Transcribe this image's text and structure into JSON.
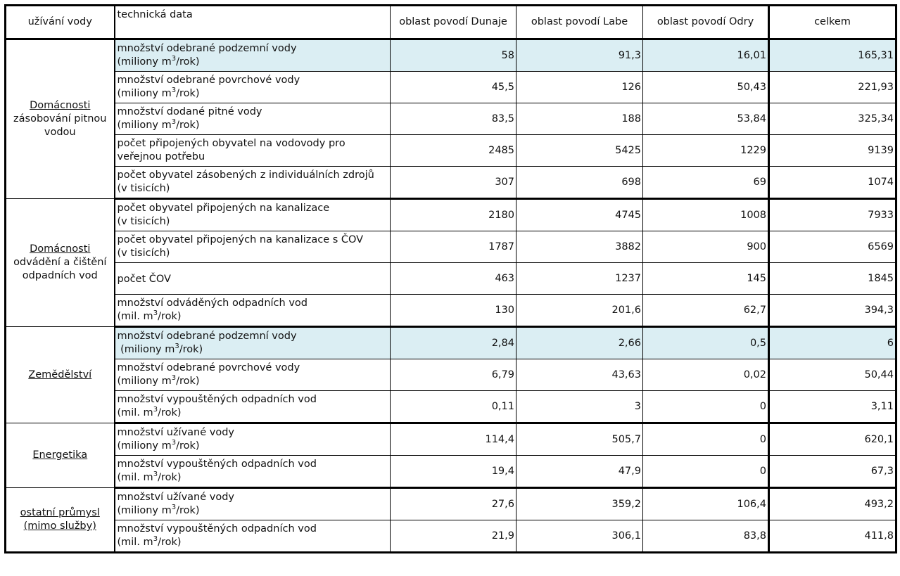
{
  "header": {
    "c1": "užívání vody",
    "c2": "technická data",
    "c3": "oblast povodí Dunaje",
    "c4": "oblast povodí Labe",
    "c5": "oblast povodí Odry",
    "c6": "celkem"
  },
  "groups": [
    {
      "name": "Domácnosti",
      "sub": "zásobování pitnou vodou",
      "rows": [
        {
          "label": "množství odebrané podzemní vody",
          "unit_pre": "(miliony m",
          "unit_sup": "3",
          "unit_post": "/rok)",
          "values": [
            "58",
            "91,3",
            "16,01",
            "165,31"
          ],
          "highlight": true
        },
        {
          "label": "množství odebrané povrchové vody",
          "unit_pre": "(miliony m",
          "unit_sup": "3",
          "unit_post": "/rok)",
          "values": [
            "45,5",
            "126",
            "50,43",
            "221,93"
          ]
        },
        {
          "label": "množství dodané pitné vody",
          "unit_pre": "(miliony m",
          "unit_sup": "3",
          "unit_post": "/rok)",
          "values": [
            "83,5",
            "188",
            "53,84",
            "325,34"
          ]
        },
        {
          "label": "počet připojených obyvatel na vodovody pro",
          "label2": "veřejnou potřebu",
          "values": [
            "2485",
            "5425",
            "1229",
            "9139"
          ]
        },
        {
          "label": "počet obyvatel zásobených z individuálních zdrojů",
          "label2": "(v tisicích)",
          "values": [
            "307",
            "698",
            "69",
            "1074"
          ]
        }
      ]
    },
    {
      "name": "Domácnosti",
      "sub": "odvádění a čištění odpadních vod",
      "rows": [
        {
          "label": "počet obyvatel připojených na kanalizace",
          "label2": "(v tisicích)",
          "values": [
            "2180",
            "4745",
            "1008",
            "7933"
          ]
        },
        {
          "label": "počet obyvatel připojených na kanalizace s ČOV",
          "label2": "(v tisicích)",
          "values": [
            "1787",
            "3882",
            "900",
            "6569"
          ]
        },
        {
          "label": "počet ČOV",
          "values": [
            "463",
            "1237",
            "145",
            "1845"
          ],
          "single": true
        },
        {
          "label": "množství odváděných odpadních vod",
          "unit_pre": "(mil. m",
          "unit_sup": "3",
          "unit_post": "/rok)",
          "values": [
            "130",
            "201,6",
            "62,7",
            "394,3"
          ]
        }
      ]
    },
    {
      "name": "Zemědělství",
      "sub": "",
      "rows": [
        {
          "label": "množství odebrané podzemní vody",
          "unit_pre": " (miliony m",
          "unit_sup": "3",
          "unit_post": "/rok)",
          "values": [
            "2,84",
            "2,66",
            "0,5",
            "6"
          ],
          "highlight": true
        },
        {
          "label": "množství odebrané povrchové vody",
          "unit_pre": "(miliony m",
          "unit_sup": "3",
          "unit_post": "/rok)",
          "values": [
            "6,79",
            "43,63",
            "0,02",
            "50,44"
          ]
        },
        {
          "label": "množství vypouštěných odpadních vod",
          "unit_pre": "(mil. m",
          "unit_sup": "3",
          "unit_post": "/rok)",
          "values": [
            "0,11",
            "3",
            "0",
            "3,11"
          ]
        }
      ]
    },
    {
      "name": "Energetika",
      "sub": "",
      "rows": [
        {
          "label": "množství užívané vody",
          "unit_pre": "(miliony m",
          "unit_sup": "3",
          "unit_post": "/rok)",
          "values": [
            "114,4",
            "505,7",
            "0",
            "620,1"
          ]
        },
        {
          "label": "množství vypouštěných odpadních vod",
          "unit_pre": "(mil. m",
          "unit_sup": "3",
          "unit_post": "/rok)",
          "values": [
            "19,4",
            "47,9",
            "0",
            "67,3"
          ]
        }
      ]
    },
    {
      "name": "ostatní průmysl (mimo služby)",
      "sub": "",
      "rows": [
        {
          "label": "množství užívané vody",
          "unit_pre": "(miliony m",
          "unit_sup": "3",
          "unit_post": "/rok)",
          "values": [
            "27,6",
            "359,2",
            "106,4",
            "493,2"
          ]
        },
        {
          "label": "množství vypouštěných odpadních vod",
          "unit_pre": "(mil. m",
          "unit_sup": "3",
          "unit_post": "/rok)",
          "values": [
            "21,9",
            "306,1",
            "83,8",
            "411,8"
          ]
        }
      ]
    }
  ]
}
